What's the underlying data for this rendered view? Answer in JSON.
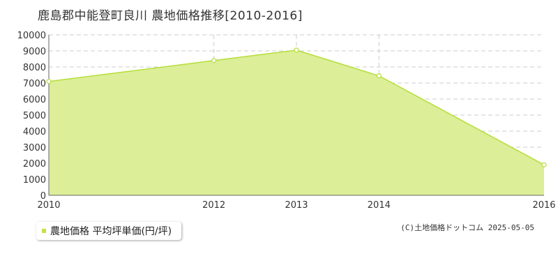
{
  "title": "鹿島郡中能登町良川 農地価格推移[2010-2016]",
  "legend": {
    "label": "農地価格 平均坪単価(円/坪)"
  },
  "copyright": "(C)土地価格ドットコム 2025-05-05",
  "colors": {
    "line": "#b5de3a",
    "fill": "#dcee98",
    "legend_swatch": "#c6e04a",
    "grid": "#cccccc"
  },
  "chart_data": {
    "type": "area",
    "title": "鹿島郡中能登町良川 農地価格推移[2010-2016]",
    "xlabel": "",
    "ylabel": "",
    "x": [
      2010,
      2012,
      2013,
      2014,
      2016
    ],
    "x_tick_labels": [
      "2010",
      "2012",
      "2013",
      "2014",
      "2016"
    ],
    "series": [
      {
        "name": "農地価格 平均坪単価(円/坪)",
        "values": [
          7100,
          8400,
          9050,
          7450,
          1900
        ]
      }
    ],
    "ylim": [
      0,
      10000
    ],
    "y_ticks": [
      0,
      1000,
      2000,
      3000,
      4000,
      5000,
      6000,
      7000,
      8000,
      9000,
      10000
    ],
    "grid": true,
    "legend_position": "bottom-left"
  }
}
